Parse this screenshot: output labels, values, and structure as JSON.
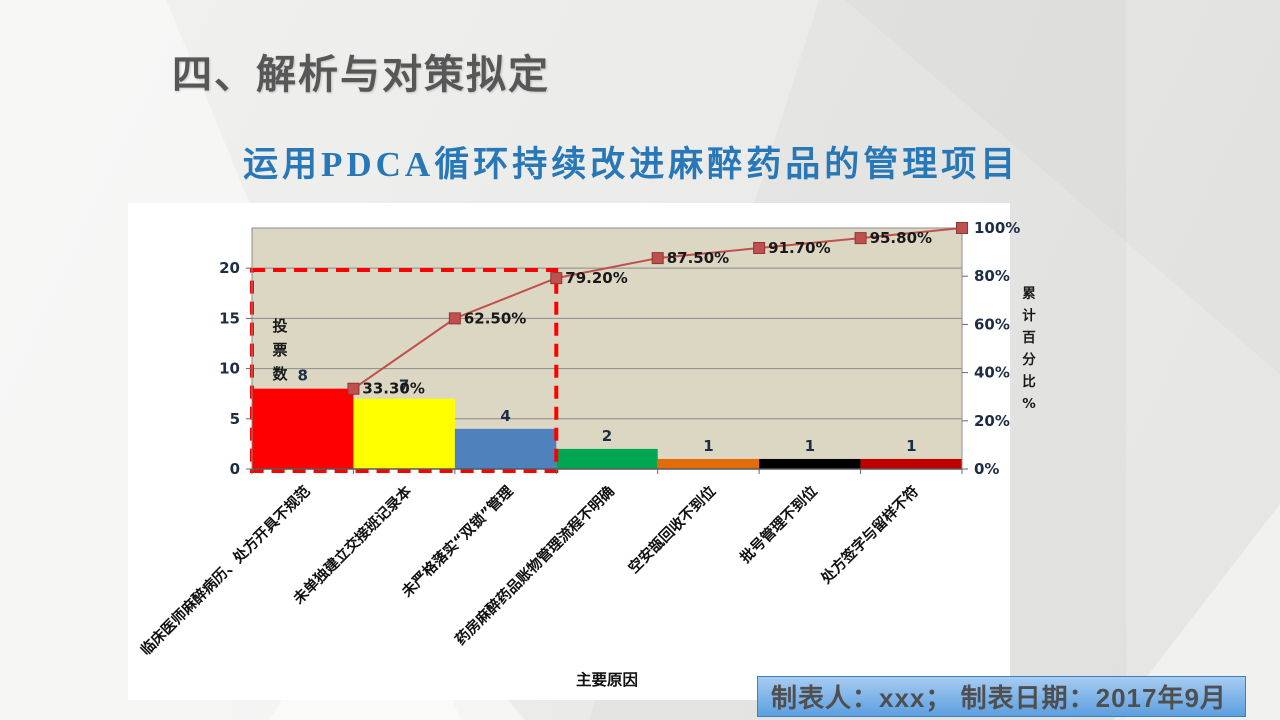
{
  "slide": {
    "title": "四、解析与对策拟定",
    "subtitle": "运用PDCA循环持续改进麻醉药品的管理项目",
    "footer": "制表人：xxx； 制表日期：2017年9月"
  },
  "colors": {
    "title_text": "#575757",
    "subtitle_text": "#2878B8",
    "footer_bg_top": "#A6CCF1",
    "footer_bg_bottom": "#5D9FE0",
    "footer_border": "#3E7FC1",
    "footer_text": "#4F4F4F",
    "panel_bg": "#FFFFFF",
    "slide_bg": "#EBEBE9"
  },
  "chart_data": {
    "type": "bar",
    "subtype": "pareto (bars + cumulative % line)",
    "title": "",
    "xlabel": "主要原因",
    "categories": [
      "临床医师麻醉病历、处方开具不规范",
      "未单独建立交接班记录本",
      "未严格落实“双锁”管理",
      "药房麻醉药品账物管理流程不明确",
      "空安瓿回收不到位",
      "批号管理不到位",
      "处方签字与留样不符"
    ],
    "series": [
      {
        "name": "投票数",
        "type": "bar",
        "values": [
          8,
          7,
          4,
          2,
          1,
          1,
          1
        ]
      },
      {
        "name": "累计百分比",
        "type": "line",
        "values_pct": [
          33.3,
          62.5,
          79.2,
          87.5,
          91.7,
          95.8,
          100
        ],
        "labels": [
          "33.30%",
          "62.50%",
          "79.20%",
          "87.50%",
          "91.70%",
          "95.80%",
          "100%"
        ]
      }
    ],
    "bar_colors": [
      "#FF0000",
      "#FFFF00",
      "#4F81BD",
      "#00A651",
      "#E36C0A",
      "#000000",
      "#C00000"
    ],
    "line_color": "#C0504D",
    "marker_edge": "#8C3836",
    "plot_bg": "#DBD7C3",
    "grid_color": "#8A8A8A",
    "grid": true,
    "legend": false,
    "left_axis": {
      "title": "投票数",
      "ticks": [
        0,
        5,
        10,
        15,
        20
      ],
      "max": 24
    },
    "right_axis": {
      "title": "累计百分比 %",
      "ticks": [
        0,
        20,
        40,
        60,
        80,
        100
      ],
      "suffix": "%",
      "max": 100
    },
    "highlight_box": {
      "color": "#FF0000",
      "style": "dashed",
      "covers_first_n_bars": 3,
      "top_at_pct": 83
    }
  }
}
